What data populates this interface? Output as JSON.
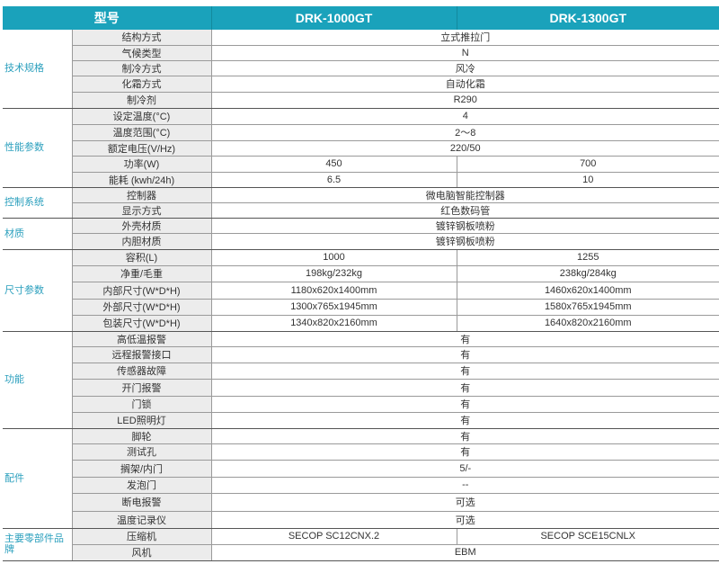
{
  "header": {
    "model_label": "型号",
    "models": [
      "DRK-1000GT",
      "DRK-1300GT"
    ]
  },
  "colors": {
    "header_bg": "#1aa2bb",
    "group_text": "#2a9fbd",
    "label_bg": "#ececec"
  },
  "groups": [
    {
      "name": "技术规格",
      "rows": [
        {
          "label": "结构方式",
          "values": [
            "立式推拉门"
          ]
        },
        {
          "label": "气候类型",
          "values": [
            "N"
          ]
        },
        {
          "label": "制冷方式",
          "values": [
            "风冷"
          ]
        },
        {
          "label": "化霜方式",
          "values": [
            "自动化霜"
          ]
        },
        {
          "label": "制冷剂",
          "values": [
            "R290"
          ]
        }
      ]
    },
    {
      "name": "性能参数",
      "rows": [
        {
          "label": "设定温度(°C)",
          "values": [
            "4"
          ]
        },
        {
          "label": "温度范围(°C)",
          "values": [
            "2～8"
          ]
        },
        {
          "label": "额定电压(V/Hz)",
          "values": [
            "220/50"
          ]
        },
        {
          "label": "功率(W)",
          "values": [
            "450",
            "700"
          ]
        },
        {
          "label": "能耗 (kwh/24h)",
          "values": [
            "6.5",
            "10"
          ]
        }
      ]
    },
    {
      "name": "控制系统",
      "rows": [
        {
          "label": "控制器",
          "values": [
            "微电脑智能控制器"
          ]
        },
        {
          "label": "显示方式",
          "values": [
            "红色数码管"
          ]
        }
      ]
    },
    {
      "name": "材质",
      "rows": [
        {
          "label": "外壳材质",
          "values": [
            "镀锌钢板喷粉"
          ]
        },
        {
          "label": "内胆材质",
          "values": [
            "镀锌钢板喷粉"
          ]
        }
      ]
    },
    {
      "name": "尺寸参数",
      "rows": [
        {
          "label": "容积(L)",
          "values": [
            "1000",
            "1255"
          ]
        },
        {
          "label": "净重/毛重",
          "values": [
            "198kg/232kg",
            "238kg/284kg"
          ]
        },
        {
          "label": "内部尺寸(W*D*H)",
          "values": [
            "1180x620x1400mm",
            "1460x620x1400mm"
          ]
        },
        {
          "label": "外部尺寸(W*D*H)",
          "values": [
            "1300x765x1945mm",
            "1580x765x1945mm"
          ]
        },
        {
          "label": "包装尺寸(W*D*H)",
          "values": [
            "1340x820x2160mm",
            "1640x820x2160mm"
          ]
        }
      ]
    },
    {
      "name": "功能",
      "rows": [
        {
          "label": "高低温报警",
          "values": [
            "有"
          ]
        },
        {
          "label": "远程报警接口",
          "values": [
            "有"
          ]
        },
        {
          "label": "传感器故障",
          "values": [
            "有"
          ]
        },
        {
          "label": "开门报警",
          "values": [
            "有"
          ]
        },
        {
          "label": "门锁",
          "values": [
            "有"
          ]
        },
        {
          "label": "LED照明灯",
          "values": [
            "有"
          ]
        }
      ]
    },
    {
      "name": "配件",
      "rows": [
        {
          "label": "脚轮",
          "values": [
            "有"
          ]
        },
        {
          "label": "测试孔",
          "values": [
            "有"
          ]
        },
        {
          "label": "搁架/内门",
          "values": [
            "5/-"
          ]
        },
        {
          "label": "发泡门",
          "values": [
            "--"
          ]
        },
        {
          "label": "断电报警",
          "values": [
            "可选"
          ]
        },
        {
          "label": "温度记录仪",
          "values": [
            "可选"
          ]
        }
      ]
    },
    {
      "name": "主要零部件品牌",
      "rows": [
        {
          "label": "压缩机",
          "values": [
            "SECOP SC12CNX.2",
            "SECOP SCE15CNLX"
          ]
        },
        {
          "label": "风机",
          "values": [
            "EBM"
          ]
        }
      ]
    }
  ]
}
